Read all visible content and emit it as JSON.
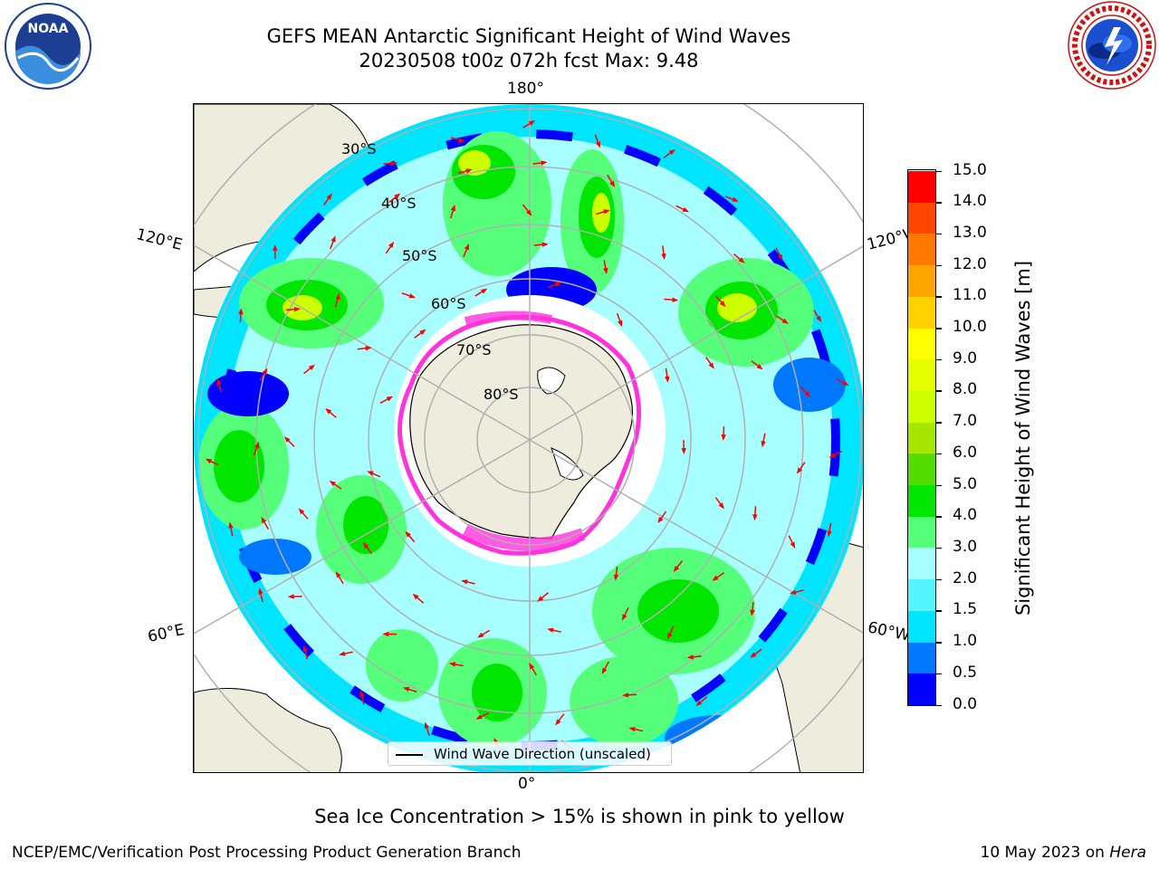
{
  "title": {
    "line1": "GEFS MEAN Antarctic Significant Height of Wind Waves",
    "line2": "20230508 t00z 072h fcst   Max: 9.48"
  },
  "logos": {
    "left": {
      "name": "NOAA",
      "text": "NOAA"
    },
    "right": {
      "name": "National Weather Service"
    }
  },
  "map": {
    "projection": "south-polar-stereographic",
    "lon_labels": {
      "top": "180°",
      "bottom": "0°",
      "upper_left": "120°E",
      "upper_right": "120°W",
      "lower_left": "60°E",
      "lower_right": "60°W"
    },
    "lat_labels": [
      "30°S",
      "40°S",
      "50°S",
      "60°S",
      "70°S",
      "80°S"
    ],
    "legend": "Wind Wave Direction (unscaled)"
  },
  "colorbar": {
    "label": "Significant Height of Wind Waves [m]",
    "ticks": [
      "0.0",
      "0.5",
      "1.0",
      "1.5",
      "2.0",
      "3.0",
      "4.0",
      "5.0",
      "6.0",
      "7.0",
      "8.0",
      "9.0",
      "10.0",
      "11.0",
      "12.0",
      "13.0",
      "14.0",
      "15.0"
    ],
    "colors": [
      "#0000ff",
      "#0077ff",
      "#00e5ff",
      "#55f5ff",
      "#a8ffff",
      "#55ff7a",
      "#00e600",
      "#55dd00",
      "#a6e600",
      "#ccff00",
      "#e6ff00",
      "#ffff00",
      "#ffd200",
      "#ffa500",
      "#ff7800",
      "#ff4600",
      "#ff0000"
    ]
  },
  "colors": {
    "land": "#eeecdc",
    "ice_edge": "#ff33dd",
    "arrow": "#ff0000",
    "grid": "#b0b0b0"
  },
  "footer": {
    "ice_note": "Sea Ice Concentration > 15% is shown in pink to yellow",
    "left": "NCEP/EMC/Verification Post Processing Product Generation Branch",
    "right_date": "10 May 2023 on",
    "right_machine": "Hera"
  }
}
